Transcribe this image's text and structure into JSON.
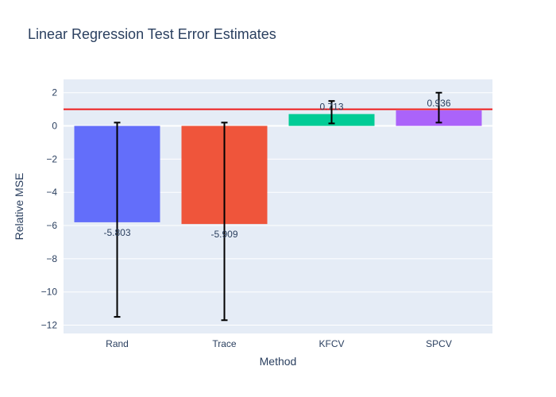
{
  "chart_data": {
    "type": "bar",
    "title": "Linear Regression Test Error Estimates",
    "xlabel": "Method",
    "ylabel": "Relative MSE",
    "categories": [
      "Rand",
      "Trace",
      "KFCV",
      "SPCV"
    ],
    "values": [
      -5.803,
      -5.909,
      0.713,
      0.936
    ],
    "value_labels": [
      "-5.803",
      "-5.909",
      "0.713",
      "0.936"
    ],
    "error_bars": [
      {
        "low": -11.5,
        "high": 0.2
      },
      {
        "low": -11.7,
        "high": 0.2
      },
      {
        "low": 0.15,
        "high": 1.5
      },
      {
        "low": 0.2,
        "high": 2.0
      }
    ],
    "bar_colors": [
      "#636efa",
      "#ef553b",
      "#00cc96",
      "#ab63fa"
    ],
    "reference_line": {
      "y": 1,
      "color": "#ee1c1c"
    },
    "ylim": [
      -12.5,
      2.8
    ],
    "yticks": [
      2,
      0,
      -2,
      -4,
      -6,
      -8,
      -10,
      -12
    ],
    "ytick_labels": [
      "2",
      "0",
      "−2",
      "−4",
      "−6",
      "−8",
      "−10",
      "−12"
    ],
    "grid": true,
    "plot_background": "#e5ecf6",
    "legend": "none"
  }
}
